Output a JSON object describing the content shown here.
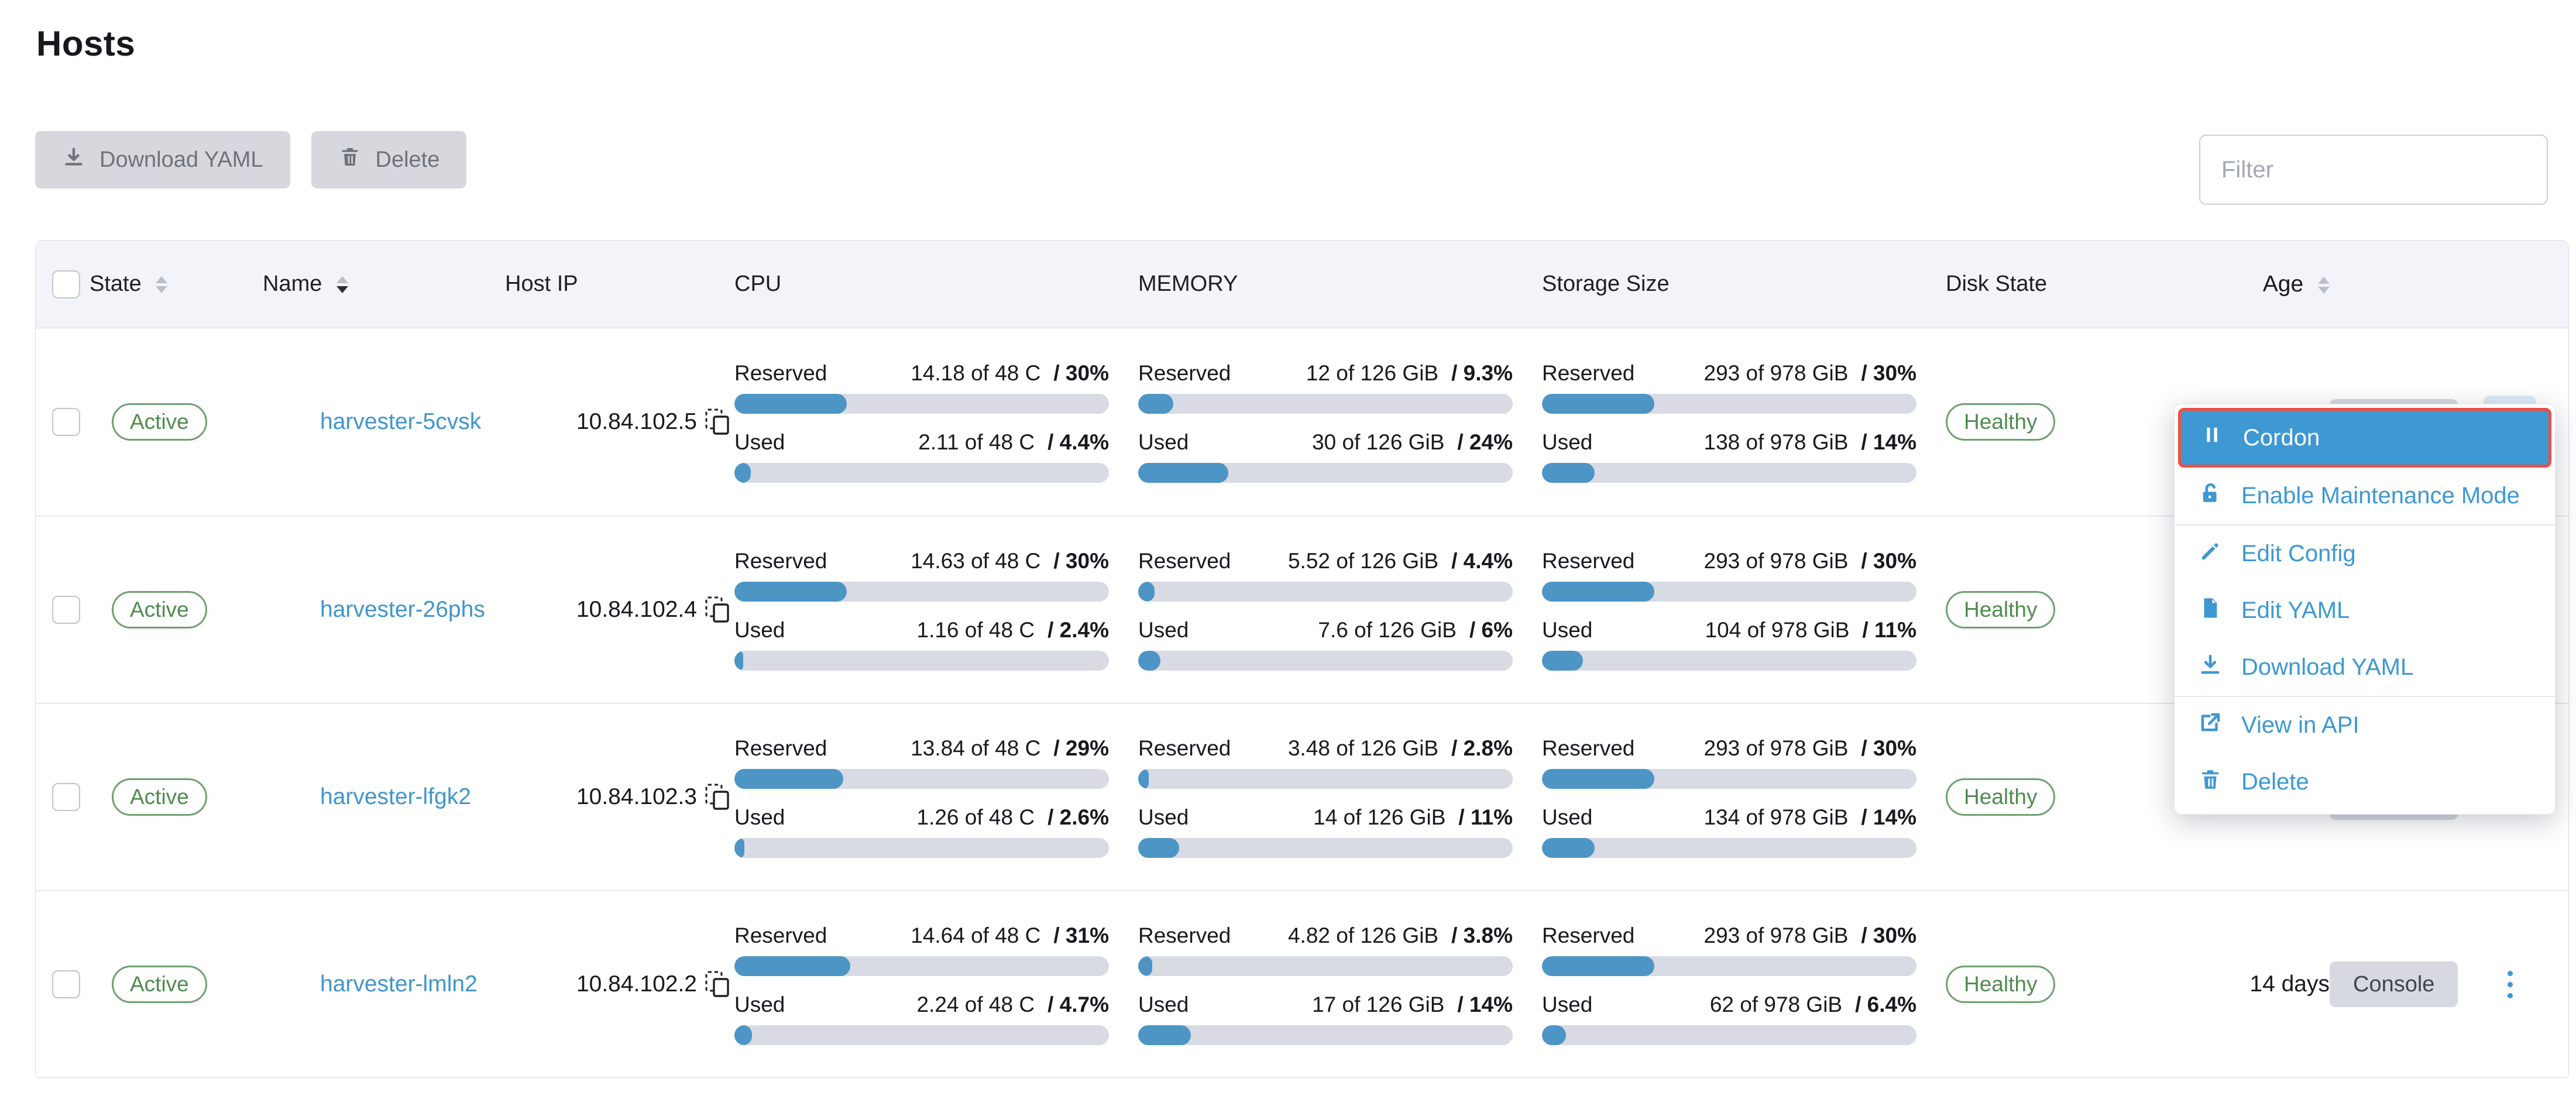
{
  "page": {
    "title": "Hosts"
  },
  "toolbar": {
    "download_yaml_label": "Download YAML",
    "delete_label": "Delete",
    "filter_placeholder": "Filter"
  },
  "table": {
    "columns": {
      "state": "State",
      "name": "Name",
      "host_ip": "Host IP",
      "cpu": "CPU",
      "memory": "MEMORY",
      "storage": "Storage Size",
      "disk_state": "Disk State",
      "age": "Age"
    },
    "meter_labels": {
      "reserved": "Reserved",
      "used": "Used"
    },
    "console_label": "Console",
    "rows": [
      {
        "state": "Active",
        "name": "harvester-5cvsk",
        "host_ip": "10.84.102.5",
        "cpu": {
          "reserved": {
            "value": "14.18 of 48 C",
            "pct_label": "/ 30%",
            "fraction": 0.3
          },
          "used": {
            "value": "2.11 of 48 C",
            "pct_label": "/ 4.4%",
            "fraction": 0.044
          }
        },
        "memory": {
          "reserved": {
            "value": "12 of 126 GiB",
            "pct_label": "/ 9.3%",
            "fraction": 0.093
          },
          "used": {
            "value": "30 of 126 GiB",
            "pct_label": "/ 24%",
            "fraction": 0.24
          }
        },
        "storage": {
          "reserved": {
            "value": "293 of 978 GiB",
            "pct_label": "/ 30%",
            "fraction": 0.3
          },
          "used": {
            "value": "138 of 978 GiB",
            "pct_label": "/ 14%",
            "fraction": 0.14
          }
        },
        "disk_state": "Healthy",
        "age": "",
        "kebab_active": true
      },
      {
        "state": "Active",
        "name": "harvester-26phs",
        "host_ip": "10.84.102.4",
        "cpu": {
          "reserved": {
            "value": "14.63 of 48 C",
            "pct_label": "/ 30%",
            "fraction": 0.3
          },
          "used": {
            "value": "1.16 of 48 C",
            "pct_label": "/ 2.4%",
            "fraction": 0.024
          }
        },
        "memory": {
          "reserved": {
            "value": "5.52 of 126 GiB",
            "pct_label": "/ 4.4%",
            "fraction": 0.044
          },
          "used": {
            "value": "7.6 of 126 GiB",
            "pct_label": "/ 6%",
            "fraction": 0.06
          }
        },
        "storage": {
          "reserved": {
            "value": "293 of 978 GiB",
            "pct_label": "/ 30%",
            "fraction": 0.3
          },
          "used": {
            "value": "104 of 978 GiB",
            "pct_label": "/ 11%",
            "fraction": 0.11
          }
        },
        "disk_state": "Healthy",
        "age": "",
        "kebab_active": false
      },
      {
        "state": "Active",
        "name": "harvester-lfgk2",
        "host_ip": "10.84.102.3",
        "cpu": {
          "reserved": {
            "value": "13.84 of 48 C",
            "pct_label": "/ 29%",
            "fraction": 0.29
          },
          "used": {
            "value": "1.26 of 48 C",
            "pct_label": "/ 2.6%",
            "fraction": 0.026
          }
        },
        "memory": {
          "reserved": {
            "value": "3.48 of 126 GiB",
            "pct_label": "/ 2.8%",
            "fraction": 0.028
          },
          "used": {
            "value": "14 of 126 GiB",
            "pct_label": "/ 11%",
            "fraction": 0.11
          }
        },
        "storage": {
          "reserved": {
            "value": "293 of 978 GiB",
            "pct_label": "/ 30%",
            "fraction": 0.3
          },
          "used": {
            "value": "134 of 978 GiB",
            "pct_label": "/ 14%",
            "fraction": 0.14
          }
        },
        "disk_state": "Healthy",
        "age": "",
        "kebab_active": false
      },
      {
        "state": "Active",
        "name": "harvester-lmln2",
        "host_ip": "10.84.102.2",
        "cpu": {
          "reserved": {
            "value": "14.64 of 48 C",
            "pct_label": "/ 31%",
            "fraction": 0.31
          },
          "used": {
            "value": "2.24 of 48 C",
            "pct_label": "/ 4.7%",
            "fraction": 0.047
          }
        },
        "memory": {
          "reserved": {
            "value": "4.82 of 126 GiB",
            "pct_label": "/ 3.8%",
            "fraction": 0.038
          },
          "used": {
            "value": "17 of 126 GiB",
            "pct_label": "/ 14%",
            "fraction": 0.14
          }
        },
        "storage": {
          "reserved": {
            "value": "293 of 978 GiB",
            "pct_label": "/ 30%",
            "fraction": 0.3
          },
          "used": {
            "value": "62 of 978 GiB",
            "pct_label": "/ 6.4%",
            "fraction": 0.064
          }
        },
        "disk_state": "Healthy",
        "age": "14 days",
        "kebab_active": false
      }
    ]
  },
  "menu": {
    "items": [
      {
        "label": "Cordon",
        "icon": "pause-icon"
      },
      {
        "label": "Enable Maintenance Mode",
        "icon": "unlock-icon"
      },
      {
        "label": "Edit Config",
        "icon": "pencil-icon"
      },
      {
        "label": "Edit YAML",
        "icon": "file-icon"
      },
      {
        "label": "Download YAML",
        "icon": "download-icon"
      },
      {
        "label": "View in API",
        "icon": "external-link-icon"
      },
      {
        "label": "Delete",
        "icon": "trash-icon"
      }
    ]
  },
  "colors": {
    "primary_blue": "#3d98d3",
    "bar_blue": "#4d95c5",
    "bar_track": "#d8dbe3",
    "success_green": "#4f8b4f",
    "highlight_ring_red": "#ee4f44",
    "header_bg": "#f3f4f9",
    "disabled_btn_bg": "#d6d8de"
  }
}
